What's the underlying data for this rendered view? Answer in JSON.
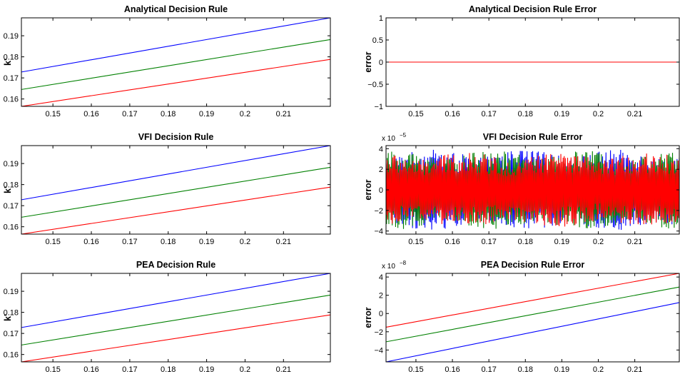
{
  "chart_data": [
    {
      "id": "p1",
      "type": "line",
      "title": "Analytical Decision Rule",
      "xlabel": "",
      "ylabel": "k'",
      "xlim": [
        0.1418,
        0.2222
      ],
      "ylim": [
        0.1565,
        0.1985
      ],
      "xticks": [
        0.15,
        0.16,
        0.17,
        0.18,
        0.19,
        0.2,
        0.21
      ],
      "xtick_labels": [
        "0.15",
        "0.16",
        "0.17",
        "0.18",
        "0.19",
        "0.2",
        "0.21"
      ],
      "yticks": [
        0.16,
        0.17,
        0.18,
        0.19
      ],
      "ytick_labels": [
        "0.16",
        "0.17",
        "0.18",
        "0.19"
      ],
      "grid": false,
      "series": [
        {
          "color": "#0000ff",
          "x": [
            0.1418,
            0.2222
          ],
          "y": [
            0.1728,
            0.1985
          ]
        },
        {
          "color": "#008000",
          "x": [
            0.1418,
            0.2222
          ],
          "y": [
            0.1645,
            0.1882
          ]
        },
        {
          "color": "#ff0000",
          "x": [
            0.1418,
            0.2222
          ],
          "y": [
            0.1565,
            0.1788
          ]
        }
      ]
    },
    {
      "id": "p2",
      "type": "line",
      "title": "Analytical Decision Rule Error",
      "xlabel": "",
      "ylabel": "error",
      "xlim": [
        0.1418,
        0.2222
      ],
      "ylim": [
        -1,
        1
      ],
      "xticks": [
        0.15,
        0.16,
        0.17,
        0.18,
        0.19,
        0.2,
        0.21
      ],
      "xtick_labels": [
        "0.15",
        "0.16",
        "0.17",
        "0.18",
        "0.19",
        "0.2",
        "0.21"
      ],
      "yticks": [
        -1,
        -0.5,
        0,
        0.5,
        1
      ],
      "ytick_labels": [
        "−1",
        "−0.5",
        "0",
        "0.5",
        "1"
      ],
      "grid": false,
      "series": [
        {
          "color": "#0000ff",
          "x": [
            0.1418,
            0.2222
          ],
          "y": [
            0,
            0
          ]
        },
        {
          "color": "#008000",
          "x": [
            0.1418,
            0.2222
          ],
          "y": [
            0,
            0
          ]
        },
        {
          "color": "#ff0000",
          "x": [
            0.1418,
            0.2222
          ],
          "y": [
            0,
            0
          ]
        }
      ]
    },
    {
      "id": "p3",
      "type": "line",
      "title": "VFI Decision Rule",
      "xlabel": "",
      "ylabel": "k'",
      "xlim": [
        0.1418,
        0.2222
      ],
      "ylim": [
        0.1565,
        0.1985
      ],
      "xticks": [
        0.15,
        0.16,
        0.17,
        0.18,
        0.19,
        0.2,
        0.21
      ],
      "xtick_labels": [
        "0.15",
        "0.16",
        "0.17",
        "0.18",
        "0.19",
        "0.2",
        "0.21"
      ],
      "yticks": [
        0.16,
        0.17,
        0.18,
        0.19
      ],
      "ytick_labels": [
        "0.16",
        "0.17",
        "0.18",
        "0.19"
      ],
      "grid": false,
      "series": [
        {
          "color": "#0000ff",
          "x": [
            0.1418,
            0.2222
          ],
          "y": [
            0.1728,
            0.1985
          ]
        },
        {
          "color": "#008000",
          "x": [
            0.1418,
            0.2222
          ],
          "y": [
            0.1645,
            0.1882
          ]
        },
        {
          "color": "#ff0000",
          "x": [
            0.1418,
            0.2222
          ],
          "y": [
            0.1565,
            0.1788
          ]
        }
      ]
    },
    {
      "id": "p4",
      "type": "line",
      "title": "VFI Decision Rule Error",
      "xlabel": "",
      "ylabel": "error",
      "exponent": "x 10",
      "exponent_power": "−5",
      "xlim": [
        0.1418,
        0.2222
      ],
      "ylim": [
        -4.3,
        4.3
      ],
      "xticks": [
        0.15,
        0.16,
        0.17,
        0.18,
        0.19,
        0.2,
        0.21
      ],
      "xtick_labels": [
        "0.15",
        "0.16",
        "0.17",
        "0.18",
        "0.19",
        "0.2",
        "0.21"
      ],
      "yticks": [
        -4,
        -2,
        0,
        2,
        4
      ],
      "ytick_labels": [
        "−4",
        "−2",
        "0",
        "2",
        "4"
      ],
      "grid": false,
      "note": "dense oscillating error series, amplitude up to about 4 x 10^-5",
      "series": [
        {
          "color": "#0000ff",
          "amplitude": 3.9
        },
        {
          "color": "#008000",
          "amplitude": 3.8
        },
        {
          "color": "#ff0000",
          "amplitude": 3.6
        }
      ]
    },
    {
      "id": "p5",
      "type": "line",
      "title": "PEA Decision Rule",
      "xlabel": "",
      "ylabel": "k'",
      "xlim": [
        0.1418,
        0.2222
      ],
      "ylim": [
        0.1565,
        0.1985
      ],
      "xticks": [
        0.15,
        0.16,
        0.17,
        0.18,
        0.19,
        0.2,
        0.21
      ],
      "xtick_labels": [
        "0.15",
        "0.16",
        "0.17",
        "0.18",
        "0.19",
        "0.2",
        "0.21"
      ],
      "yticks": [
        0.16,
        0.17,
        0.18,
        0.19
      ],
      "ytick_labels": [
        "0.16",
        "0.17",
        "0.18",
        "0.19"
      ],
      "grid": false,
      "series": [
        {
          "color": "#0000ff",
          "x": [
            0.1418,
            0.2222
          ],
          "y": [
            0.1728,
            0.1985
          ]
        },
        {
          "color": "#008000",
          "x": [
            0.1418,
            0.2222
          ],
          "y": [
            0.1645,
            0.1882
          ]
        },
        {
          "color": "#ff0000",
          "x": [
            0.1418,
            0.2222
          ],
          "y": [
            0.1565,
            0.1788
          ]
        }
      ]
    },
    {
      "id": "p6",
      "type": "line",
      "title": "PEA Decision Rule Error",
      "xlabel": "",
      "ylabel": "error",
      "exponent": "x 10",
      "exponent_power": "−8",
      "xlim": [
        0.1418,
        0.2222
      ],
      "ylim": [
        -5.3,
        4.4
      ],
      "xticks": [
        0.15,
        0.16,
        0.17,
        0.18,
        0.19,
        0.2,
        0.21
      ],
      "xtick_labels": [
        "0.15",
        "0.16",
        "0.17",
        "0.18",
        "0.19",
        "0.2",
        "0.21"
      ],
      "yticks": [
        -4,
        -2,
        0,
        2,
        4
      ],
      "ytick_labels": [
        "−4",
        "−2",
        "0",
        "2",
        "4"
      ],
      "grid": false,
      "series": [
        {
          "color": "#ff0000",
          "x": [
            0.1418,
            0.2222
          ],
          "y": [
            -1.5,
            4.4
          ]
        },
        {
          "color": "#008000",
          "x": [
            0.1418,
            0.2222
          ],
          "y": [
            -3.1,
            2.9
          ]
        },
        {
          "color": "#0000ff",
          "x": [
            0.1418,
            0.2222
          ],
          "y": [
            -5.3,
            1.2
          ]
        }
      ]
    }
  ]
}
